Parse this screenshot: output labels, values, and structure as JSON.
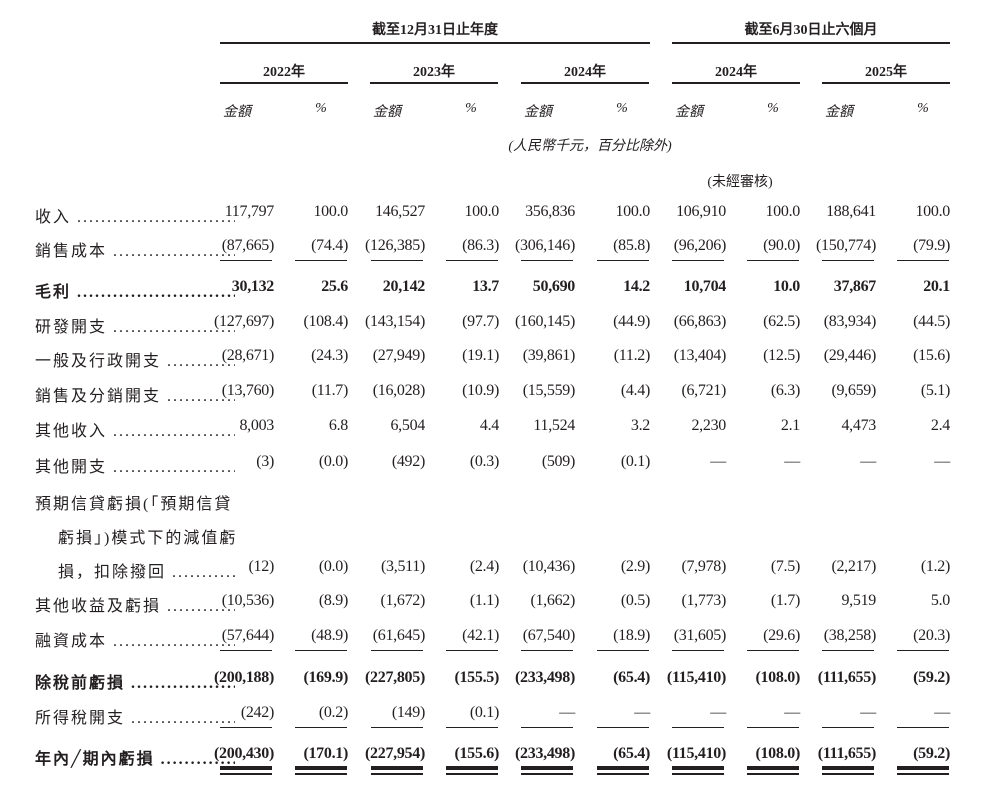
{
  "header": {
    "group_year": "截至12月31日止年度",
    "group_six_months": "截至6月30日止六個月",
    "years": [
      "2022年",
      "2023年",
      "2024年",
      "2024年",
      "2025年"
    ],
    "amount_label": "金額",
    "percent_label": "%",
    "currency_note": "(人民幣千元，百分比除外)",
    "unaudited_note": "(未經審核)"
  },
  "rows": [
    {
      "label": [
        "收入"
      ],
      "values": [
        "117,797",
        "100.0",
        "146,527",
        "100.0",
        "356,836",
        "100.0",
        "106,910",
        "100.0",
        "188,641",
        "100.0"
      ],
      "bold": false,
      "rule": "none"
    },
    {
      "label": [
        "銷售成本 "
      ],
      "values": [
        "(87,665)",
        "(74.4)",
        "(126,385)",
        "(86.3)",
        "(306,146)",
        "(85.8)",
        "(96,206)",
        "(90.0)",
        "(150,774)",
        "(79.9)"
      ],
      "bold": false,
      "rule": "single"
    },
    {
      "label": [
        "毛利"
      ],
      "values": [
        "30,132",
        "25.6",
        "20,142",
        "13.7",
        "50,690",
        "14.2",
        "10,704",
        "10.0",
        "37,867",
        "20.1"
      ],
      "bold": true,
      "rule": "none"
    },
    {
      "label": [
        "研發開支 "
      ],
      "values": [
        "(127,697)",
        "(108.4)",
        "(143,154)",
        "(97.7)",
        "(160,145)",
        "(44.9)",
        "(66,863)",
        "(62.5)",
        "(83,934)",
        "(44.5)"
      ],
      "bold": false,
      "rule": "none"
    },
    {
      "label": [
        "一般及行政開支"
      ],
      "values": [
        "(28,671)",
        "(24.3)",
        "(27,949)",
        "(19.1)",
        "(39,861)",
        "(11.2)",
        "(13,404)",
        "(12.5)",
        "(29,446)",
        "(15.6)"
      ],
      "bold": false,
      "rule": "none"
    },
    {
      "label": [
        "銷售及分銷開支"
      ],
      "values": [
        "(13,760)",
        "(11.7)",
        "(16,028)",
        "(10.9)",
        "(15,559)",
        "(4.4)",
        "(6,721)",
        "(6.3)",
        "(9,659)",
        "(5.1)"
      ],
      "bold": false,
      "rule": "none"
    },
    {
      "label": [
        "其他收入 "
      ],
      "values": [
        "8,003",
        "6.8",
        "6,504",
        "4.4",
        "11,524",
        "3.2",
        "2,230",
        "2.1",
        "4,473",
        "2.4"
      ],
      "bold": false,
      "rule": "none"
    },
    {
      "label": [
        "其他開支 "
      ],
      "values": [
        "(3)",
        "(0.0)",
        "(492)",
        "(0.3)",
        "(509)",
        "(0.1)",
        "—",
        "—",
        "—",
        "—"
      ],
      "bold": false,
      "rule": "none"
    },
    {
      "label": [
        "預期信貸虧損(「預期信貸",
        "虧損」)模式下的減值虧",
        "損，扣除撥回"
      ],
      "values": [
        "(12)",
        "(0.0)",
        "(3,511)",
        "(2.4)",
        "(10,436)",
        "(2.9)",
        "(7,978)",
        "(7.5)",
        "(2,217)",
        "(1.2)"
      ],
      "bold": false,
      "rule": "none"
    },
    {
      "label": [
        "其他收益及虧損"
      ],
      "values": [
        "(10,536)",
        "(8.9)",
        "(1,672)",
        "(1.1)",
        "(1,662)",
        "(0.5)",
        "(1,773)",
        "(1.7)",
        "9,519",
        "5.0"
      ],
      "bold": false,
      "rule": "none"
    },
    {
      "label": [
        "融資成本 "
      ],
      "values": [
        "(57,644)",
        "(48.9)",
        "(61,645)",
        "(42.1)",
        "(67,540)",
        "(18.9)",
        "(31,605)",
        "(29.6)",
        "(38,258)",
        "(20.3)"
      ],
      "bold": false,
      "rule": "single"
    },
    {
      "label": [
        "除稅前虧損 "
      ],
      "values": [
        "(200,188)",
        "(169.9)",
        "(227,805)",
        "(155.5)",
        "(233,498)",
        "(65.4)",
        "(115,410)",
        "(108.0)",
        "(111,655)",
        "(59.2)"
      ],
      "bold": true,
      "rule": "none"
    },
    {
      "label": [
        "所得稅開支"
      ],
      "values": [
        "(242)",
        "(0.2)",
        "(149)",
        "(0.1)",
        "—",
        "—",
        "—",
        "—",
        "—",
        "—"
      ],
      "bold": false,
      "rule": "single"
    },
    {
      "label": [
        "年內╱期內虧損"
      ],
      "values": [
        "(200,430)",
        "(170.1)",
        "(227,954)",
        "(155.6)",
        "(233,498)",
        "(65.4)",
        "(115,410)",
        "(108.0)",
        "(111,655)",
        "(59.2)"
      ],
      "bold": true,
      "rule": "double"
    }
  ]
}
